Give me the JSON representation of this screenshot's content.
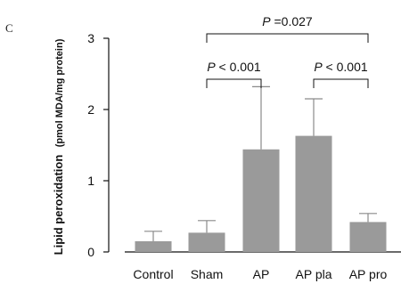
{
  "panel_label": "C",
  "chart_data": {
    "type": "bar",
    "categories": [
      "Control",
      "Sham",
      "AP",
      "AP pla",
      "AP pro"
    ],
    "values": [
      0.15,
      0.27,
      1.44,
      1.63,
      0.42
    ],
    "errors": [
      0.14,
      0.17,
      0.88,
      0.52,
      0.12
    ],
    "ylabel_main": "Lipid peroxidation",
    "ylabel_unit": "(pmol MDA/mg protein)",
    "ylim": [
      0,
      3
    ],
    "yticks": [
      "0",
      "1",
      "2",
      "3"
    ],
    "bar_color": "#9a9a9a",
    "annotations": [
      {
        "from": 1,
        "to": 4,
        "p_italic": "P",
        "p_text": " =0.027"
      },
      {
        "from": 1,
        "to": 2,
        "p_italic": "P",
        "p_text": " < 0.001"
      },
      {
        "from": 3,
        "to": 4,
        "p_italic": "P",
        "p_text": " < 0.001"
      }
    ]
  }
}
